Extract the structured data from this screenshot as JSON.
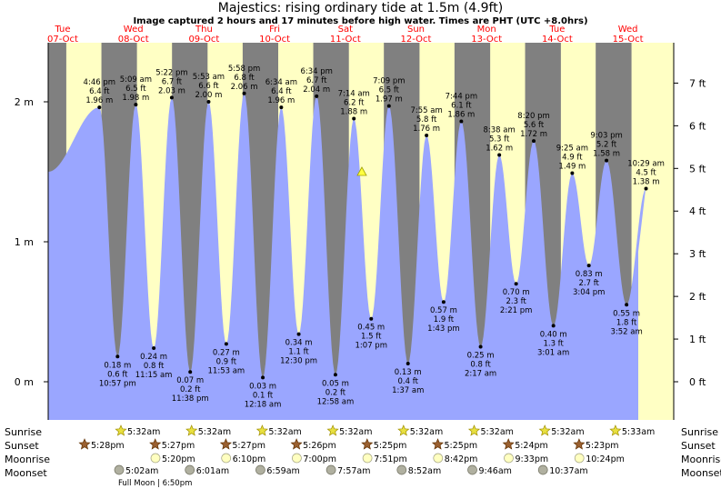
{
  "title": "Majestics: rising  ordinary tide at 1.5m (4.9ft)",
  "subtitle": "Image captured 2 hours and 17 minutes before high water. Times are PHT (UTC +8.0hrs)",
  "colors": {
    "day": "#ffffc4",
    "night": "#808080",
    "tide": "#9aa6ff",
    "day_label": "#ff0000",
    "sun": "#e8e040",
    "sunset": "#9a6030",
    "moon": "#ffffc0",
    "moonset": "#b0b0a0"
  },
  "chart_data": {
    "type": "area",
    "title": "Majestics: rising  ordinary tide at 1.5m (4.9ft)",
    "ylabel_left": "m",
    "ylabel_right": "ft",
    "y_ticks_left": [
      "0 m",
      "1 m",
      "2 m"
    ],
    "y_ticks_right": [
      "0 ft",
      "1 ft",
      "2 ft",
      "3 ft",
      "4 ft",
      "5 ft",
      "6 ft",
      "7 ft"
    ],
    "days": [
      {
        "dow": "Tue",
        "date": "07-Oct"
      },
      {
        "dow": "Wed",
        "date": "08-Oct"
      },
      {
        "dow": "Thu",
        "date": "09-Oct"
      },
      {
        "dow": "Fri",
        "date": "10-Oct"
      },
      {
        "dow": "Sat",
        "date": "11-Oct"
      },
      {
        "dow": "Sun",
        "date": "12-Oct"
      },
      {
        "dow": "Mon",
        "date": "13-Oct"
      },
      {
        "dow": "Tue",
        "date": "14-Oct"
      },
      {
        "dow": "Wed",
        "date": "15-Oct"
      }
    ],
    "high_tides": [
      {
        "time": "4:46 pm",
        "ft": "6.4 ft",
        "m": "1.96 m"
      },
      {
        "time": "5:09 am",
        "ft": "6.5 ft",
        "m": "1.98 m"
      },
      {
        "time": "5:22 pm",
        "ft": "6.7 ft",
        "m": "2.03 m"
      },
      {
        "time": "5:53 am",
        "ft": "6.6 ft",
        "m": "2.00 m"
      },
      {
        "time": "5:58 pm",
        "ft": "6.8 ft",
        "m": "2.06 m"
      },
      {
        "time": "6:34 am",
        "ft": "6.4 ft",
        "m": "1.96 m"
      },
      {
        "time": "6:34 pm",
        "ft": "6.7 ft",
        "m": "2.04 m"
      },
      {
        "time": "7:14 am",
        "ft": "6.2 ft",
        "m": "1.88 m"
      },
      {
        "time": "7:09 pm",
        "ft": "6.5 ft",
        "m": "1.97 m"
      },
      {
        "time": "7:55 am",
        "ft": "5.8 ft",
        "m": "1.76 m"
      },
      {
        "time": "7:44 pm",
        "ft": "6.1 ft",
        "m": "1.86 m"
      },
      {
        "time": "8:38 am",
        "ft": "5.3 ft",
        "m": "1.62 m"
      },
      {
        "time": "8:20 pm",
        "ft": "5.6 ft",
        "m": "1.72 m"
      },
      {
        "time": "9:25 am",
        "ft": "4.9 ft",
        "m": "1.49 m"
      },
      {
        "time": "9:03 pm",
        "ft": "5.2 ft",
        "m": "1.58 m"
      },
      {
        "time": "10:29 am",
        "ft": "4.5 ft",
        "m": "1.38 m"
      }
    ],
    "low_tides": [
      {
        "m": "0.18 m",
        "ft": "0.6 ft",
        "time": "10:57 pm"
      },
      {
        "m": "0.24 m",
        "ft": "0.8 ft",
        "time": "11:15 am"
      },
      {
        "m": "0.07 m",
        "ft": "0.2 ft",
        "time": "11:38 pm"
      },
      {
        "m": "0.27 m",
        "ft": "0.9 ft",
        "time": "11:53 am"
      },
      {
        "m": "0.03 m",
        "ft": "0.1 ft",
        "time": "12:18 am"
      },
      {
        "m": "0.34 m",
        "ft": "1.1 ft",
        "time": "12:30 pm"
      },
      {
        "m": "0.05 m",
        "ft": "0.2 ft",
        "time": "12:58 am"
      },
      {
        "m": "0.45 m",
        "ft": "1.5 ft",
        "time": "1:07 pm"
      },
      {
        "m": "0.13 m",
        "ft": "0.4 ft",
        "time": "1:37 am"
      },
      {
        "m": "0.57 m",
        "ft": "1.9 ft",
        "time": "1:43 pm"
      },
      {
        "m": "0.25 m",
        "ft": "0.8 ft",
        "time": "2:17 am"
      },
      {
        "m": "0.70 m",
        "ft": "2.3 ft",
        "time": "2:21 pm"
      },
      {
        "m": "0.40 m",
        "ft": "1.3 ft",
        "time": "3:01 am"
      },
      {
        "m": "0.83 m",
        "ft": "2.7 ft",
        "time": "3:04 pm"
      },
      {
        "m": "0.55 m",
        "ft": "1.8 ft",
        "time": "3:52 am"
      }
    ],
    "current_level_m": 1.5
  },
  "astro": {
    "labels": {
      "sunrise": "Sunrise",
      "sunset": "Sunset",
      "moonrise": "Moonrise",
      "moonset": "Moonset"
    },
    "sunrise": [
      "5:32am",
      "5:32am",
      "5:32am",
      "5:32am",
      "5:32am",
      "5:32am",
      "5:32am",
      "5:33am"
    ],
    "sunset": [
      "5:28pm",
      "5:27pm",
      "5:27pm",
      "5:26pm",
      "5:25pm",
      "5:25pm",
      "5:24pm",
      "5:23pm"
    ],
    "moonrise": [
      "5:20pm",
      "6:10pm",
      "7:00pm",
      "7:51pm",
      "8:42pm",
      "9:33pm",
      "10:24pm"
    ],
    "moonset": [
      "5:02am",
      "6:01am",
      "6:59am",
      "7:57am",
      "8:52am",
      "9:46am",
      "10:37am"
    ],
    "full_moon": "Full Moon | 6:50pm"
  }
}
